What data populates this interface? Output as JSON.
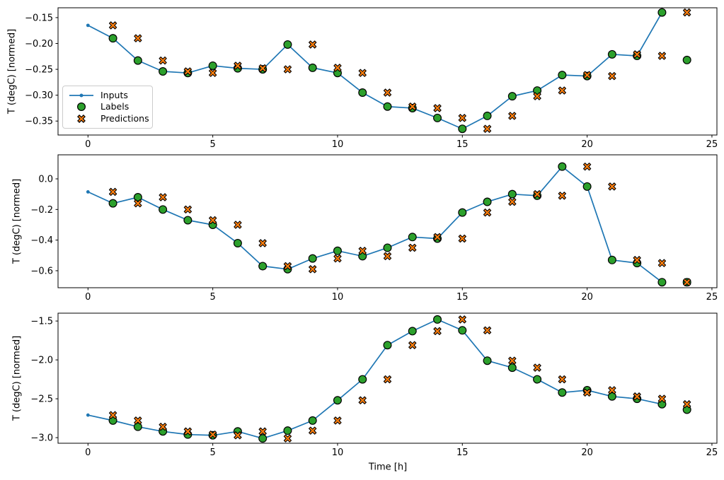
{
  "figure": {
    "background": "#ffffff"
  },
  "colors": {
    "inputs": "#1f77b4",
    "labels": "#2ca02c",
    "predictions": "#ff7f0e",
    "marker_edge": "#000000",
    "axis": "#000000",
    "legend_border": "#cccccc"
  },
  "xlabel": "Time [h]",
  "ylabel": "T (degC) [normed]",
  "legend": {
    "position": "upper-left-of-first-subplot",
    "items": [
      {
        "label": "Inputs",
        "marker": "line-with-dot"
      },
      {
        "label": "Labels",
        "marker": "filled-circle"
      },
      {
        "label": "Predictions",
        "marker": "filled-x"
      }
    ]
  },
  "chart_data": [
    {
      "type": "line",
      "title": "",
      "ylabel": "T (degC) [normed]",
      "xlim": [
        -1.2,
        25.2
      ],
      "ylim": [
        -0.377,
        -0.131
      ],
      "grid": false,
      "xticks": [
        0,
        5,
        10,
        15,
        20,
        25
      ],
      "xtick_labels": [
        "0",
        "5",
        "10",
        "15",
        "20",
        "25"
      ],
      "yticks": [
        -0.15,
        -0.2,
        -0.25,
        -0.3,
        -0.35
      ],
      "ytick_labels": [
        "−0.15",
        "−0.20",
        "−0.25",
        "−0.30",
        "−0.35"
      ],
      "series": [
        {
          "name": "Inputs",
          "style": "line+dot",
          "x": [
            0,
            1,
            2,
            3,
            4,
            5,
            6,
            7,
            8,
            9,
            10,
            11,
            12,
            13,
            14,
            15,
            16,
            17,
            18,
            19,
            20,
            21,
            22,
            23
          ],
          "values": [
            -0.165,
            -0.19,
            -0.233,
            -0.254,
            -0.257,
            -0.243,
            -0.248,
            -0.25,
            -0.202,
            -0.247,
            -0.257,
            -0.295,
            -0.322,
            -0.325,
            -0.344,
            -0.365,
            -0.34,
            -0.302,
            -0.291,
            -0.261,
            -0.263,
            -0.221,
            -0.224,
            -0.14
          ]
        },
        {
          "name": "Labels",
          "style": "scatter-circle",
          "x": [
            1,
            2,
            3,
            4,
            5,
            6,
            7,
            8,
            9,
            10,
            11,
            12,
            13,
            14,
            15,
            16,
            17,
            18,
            19,
            20,
            21,
            22,
            23,
            24
          ],
          "values": [
            -0.19,
            -0.233,
            -0.254,
            -0.257,
            -0.243,
            -0.248,
            -0.25,
            -0.202,
            -0.247,
            -0.257,
            -0.295,
            -0.322,
            -0.325,
            -0.344,
            -0.365,
            -0.34,
            -0.302,
            -0.291,
            -0.261,
            -0.263,
            -0.221,
            -0.224,
            -0.14,
            -0.232
          ]
        },
        {
          "name": "Predictions",
          "style": "scatter-x",
          "x": [
            1,
            2,
            3,
            4,
            5,
            6,
            7,
            8,
            9,
            10,
            11,
            12,
            13,
            14,
            15,
            16,
            17,
            18,
            19,
            20,
            21,
            22,
            23,
            24
          ],
          "values": [
            -0.165,
            -0.19,
            -0.233,
            -0.254,
            -0.257,
            -0.243,
            -0.248,
            -0.25,
            -0.202,
            -0.247,
            -0.257,
            -0.295,
            -0.322,
            -0.325,
            -0.344,
            -0.365,
            -0.34,
            -0.302,
            -0.291,
            -0.261,
            -0.263,
            -0.221,
            -0.224,
            -0.14
          ]
        }
      ]
    },
    {
      "type": "line",
      "title": "",
      "ylabel": "T (degC) [normed]",
      "xlim": [
        -1.2,
        25.2
      ],
      "ylim": [
        -0.711,
        0.157
      ],
      "grid": false,
      "xticks": [
        0,
        5,
        10,
        15,
        20,
        25
      ],
      "xtick_labels": [
        "0",
        "5",
        "10",
        "15",
        "20",
        "25"
      ],
      "yticks": [
        0.0,
        -0.2,
        -0.4,
        -0.6
      ],
      "ytick_labels": [
        "0.0",
        "−0.2",
        "−0.4",
        "−0.6"
      ],
      "series": [
        {
          "name": "Inputs",
          "style": "line+dot",
          "x": [
            0,
            1,
            2,
            3,
            4,
            5,
            6,
            7,
            8,
            9,
            10,
            11,
            12,
            13,
            14,
            15,
            16,
            17,
            18,
            19,
            20,
            21,
            22,
            23
          ],
          "values": [
            -0.085,
            -0.16,
            -0.12,
            -0.2,
            -0.27,
            -0.3,
            -0.42,
            -0.57,
            -0.59,
            -0.52,
            -0.47,
            -0.505,
            -0.45,
            -0.38,
            -0.39,
            -0.22,
            -0.15,
            -0.1,
            -0.11,
            0.08,
            -0.05,
            -0.53,
            -0.55,
            -0.675
          ]
        },
        {
          "name": "Labels",
          "style": "scatter-circle",
          "x": [
            1,
            2,
            3,
            4,
            5,
            6,
            7,
            8,
            9,
            10,
            11,
            12,
            13,
            14,
            15,
            16,
            17,
            18,
            19,
            20,
            21,
            22,
            23,
            24
          ],
          "values": [
            -0.16,
            -0.12,
            -0.2,
            -0.27,
            -0.3,
            -0.42,
            -0.57,
            -0.59,
            -0.52,
            -0.47,
            -0.505,
            -0.45,
            -0.38,
            -0.39,
            -0.22,
            -0.15,
            -0.1,
            -0.11,
            0.08,
            -0.05,
            -0.53,
            -0.55,
            -0.675,
            -0.675
          ]
        },
        {
          "name": "Predictions",
          "style": "scatter-x",
          "x": [
            1,
            2,
            3,
            4,
            5,
            6,
            7,
            8,
            9,
            10,
            11,
            12,
            13,
            14,
            15,
            16,
            17,
            18,
            19,
            20,
            21,
            22,
            23,
            24
          ],
          "values": [
            -0.085,
            -0.16,
            -0.12,
            -0.2,
            -0.27,
            -0.3,
            -0.42,
            -0.57,
            -0.59,
            -0.52,
            -0.47,
            -0.505,
            -0.45,
            -0.38,
            -0.39,
            -0.22,
            -0.15,
            -0.1,
            -0.11,
            0.08,
            -0.05,
            -0.53,
            -0.55,
            -0.675
          ]
        }
      ]
    },
    {
      "type": "line",
      "title": "",
      "ylabel": "T (degC) [normed]",
      "xlabel": "Time [h]",
      "xlim": [
        -1.2,
        25.2
      ],
      "ylim": [
        -3.072,
        -1.399
      ],
      "grid": false,
      "xticks": [
        0,
        5,
        10,
        15,
        20,
        25
      ],
      "xtick_labels": [
        "0",
        "5",
        "10",
        "15",
        "20",
        "25"
      ],
      "yticks": [
        -1.5,
        -2.0,
        -2.5,
        -3.0
      ],
      "ytick_labels": [
        "−1.5",
        "−2.0",
        "−2.5",
        "−3.0"
      ],
      "series": [
        {
          "name": "Inputs",
          "style": "line+dot",
          "x": [
            0,
            1,
            2,
            3,
            4,
            5,
            6,
            7,
            8,
            9,
            10,
            11,
            12,
            13,
            14,
            15,
            16,
            17,
            18,
            19,
            20,
            21,
            22,
            23
          ],
          "values": [
            -2.71,
            -2.78,
            -2.86,
            -2.92,
            -2.96,
            -2.97,
            -2.92,
            -3.01,
            -2.91,
            -2.78,
            -2.52,
            -2.25,
            -1.81,
            -1.63,
            -1.48,
            -1.62,
            -2.01,
            -2.1,
            -2.25,
            -2.42,
            -2.39,
            -2.47,
            -2.5,
            -2.57
          ]
        },
        {
          "name": "Labels",
          "style": "scatter-circle",
          "x": [
            1,
            2,
            3,
            4,
            5,
            6,
            7,
            8,
            9,
            10,
            11,
            12,
            13,
            14,
            15,
            16,
            17,
            18,
            19,
            20,
            21,
            22,
            23,
            24
          ],
          "values": [
            -2.78,
            -2.86,
            -2.92,
            -2.96,
            -2.97,
            -2.92,
            -3.01,
            -2.91,
            -2.78,
            -2.52,
            -2.25,
            -1.81,
            -1.63,
            -1.48,
            -1.62,
            -2.01,
            -2.1,
            -2.25,
            -2.42,
            -2.39,
            -2.47,
            -2.5,
            -2.57,
            -2.64
          ]
        },
        {
          "name": "Predictions",
          "style": "scatter-x",
          "x": [
            1,
            2,
            3,
            4,
            5,
            6,
            7,
            8,
            9,
            10,
            11,
            12,
            13,
            14,
            15,
            16,
            17,
            18,
            19,
            20,
            21,
            22,
            23,
            24
          ],
          "values": [
            -2.71,
            -2.78,
            -2.86,
            -2.92,
            -2.96,
            -2.97,
            -2.92,
            -3.01,
            -2.91,
            -2.78,
            -2.52,
            -2.25,
            -1.81,
            -1.63,
            -1.48,
            -1.62,
            -2.01,
            -2.1,
            -2.25,
            -2.42,
            -2.39,
            -2.47,
            -2.5,
            -2.57
          ]
        }
      ]
    }
  ]
}
